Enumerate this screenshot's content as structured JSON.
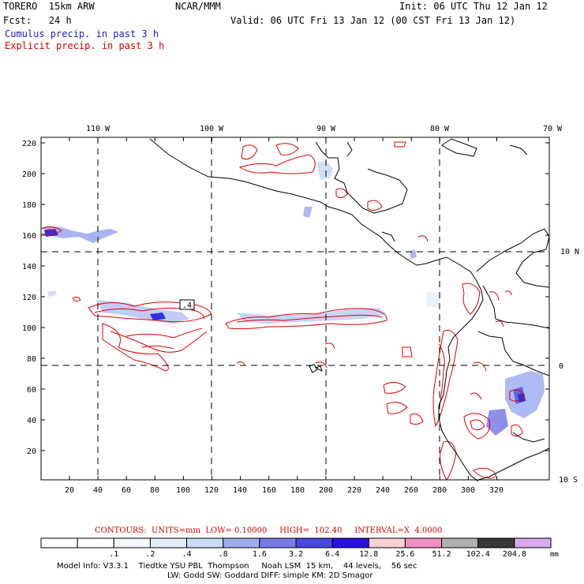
{
  "header": {
    "model": "TORERO  15km ARW",
    "center": "NCAR/MMM",
    "init": "Init: 06 UTC Thu 12 Jan 12",
    "fcst": "Fcst:   24 h",
    "valid": "Valid: 06 UTC Fri 13 Jan 12 (00 CST Fri 13 Jan 12)",
    "cumulus": "Cumulus precip. in past 3 h",
    "explicit": "Explicit precip. in past 3 h"
  },
  "map": {
    "lon_labels": [
      "110 W",
      "100 W",
      "90 W",
      "80 W",
      "70 W"
    ],
    "lat_labels": [
      "10 N",
      "0",
      "10 S"
    ],
    "y_ticks": [
      "220",
      "200",
      "180",
      "160",
      "140",
      "120",
      "100",
      "80",
      "60",
      "40",
      "20"
    ],
    "x_ticks": [
      "20",
      "40",
      "60",
      "80",
      "100",
      "120",
      "140",
      "160",
      "180",
      "200",
      "220",
      "240",
      "260",
      "280",
      "300",
      "320"
    ],
    "contour_label": ".4"
  },
  "contours_line": {
    "label": "CONTOURS:  UNITS=mm  LOW= 0.10000     HIGH=  102.40     INTERVAL=X  4.0000"
  },
  "legend": {
    "values": [
      ".1",
      ".2",
      ".4",
      ".8",
      "1.6",
      "3.2",
      "6.4",
      "12.8",
      "25.6",
      "51.2",
      "102.4",
      "204.8"
    ],
    "unit": "mm",
    "colors": [
      "#ffffff",
      "#ffffff",
      "#f4f8fc",
      "#e4eefa",
      "#c8dcf6",
      "#a0aef0",
      "#7a7ae8",
      "#4848e0",
      "#2a10e6",
      "#f8d0d0",
      "#f090c0",
      "#b0b0b0",
      "#383838",
      "#d8a8f0"
    ]
  },
  "footer": {
    "line1": "Model Info: V3.3.1    Tiedtke YSU PBL  Thompson     Noah LSM  15 km,    44 levels,    56 sec",
    "line2": "LW: Godd SW: Goddard DIFF: simple KM: 2D Smagor"
  }
}
